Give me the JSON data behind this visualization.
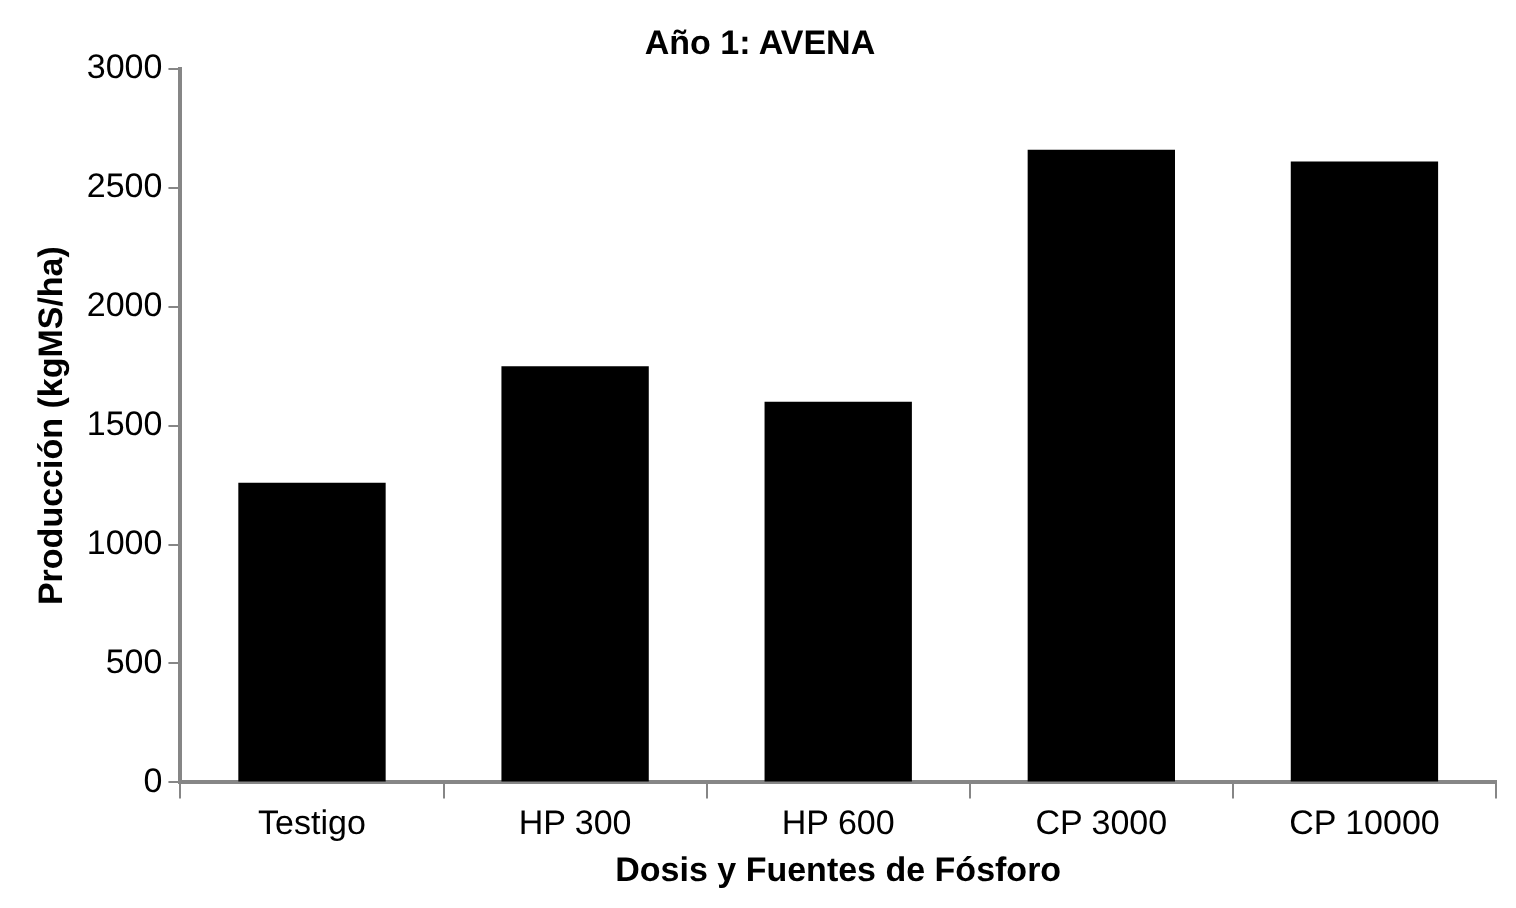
{
  "chart_data": {
    "type": "bar",
    "title": "Año 1: AVENA",
    "xlabel": "Dosis y Fuentes de Fósforo",
    "ylabel": "Producción (kgMS/ha)",
    "categories": [
      "Testigo",
      "HP 300",
      "HP 600",
      "CP 3000",
      "CP 10000"
    ],
    "values": [
      1260,
      1750,
      1600,
      2660,
      2610
    ],
    "color": "#000000",
    "ylim": [
      0,
      3000
    ],
    "yticks": [
      0,
      500,
      1000,
      1500,
      2000,
      2500,
      3000
    ],
    "grid": false,
    "legend": false
  }
}
